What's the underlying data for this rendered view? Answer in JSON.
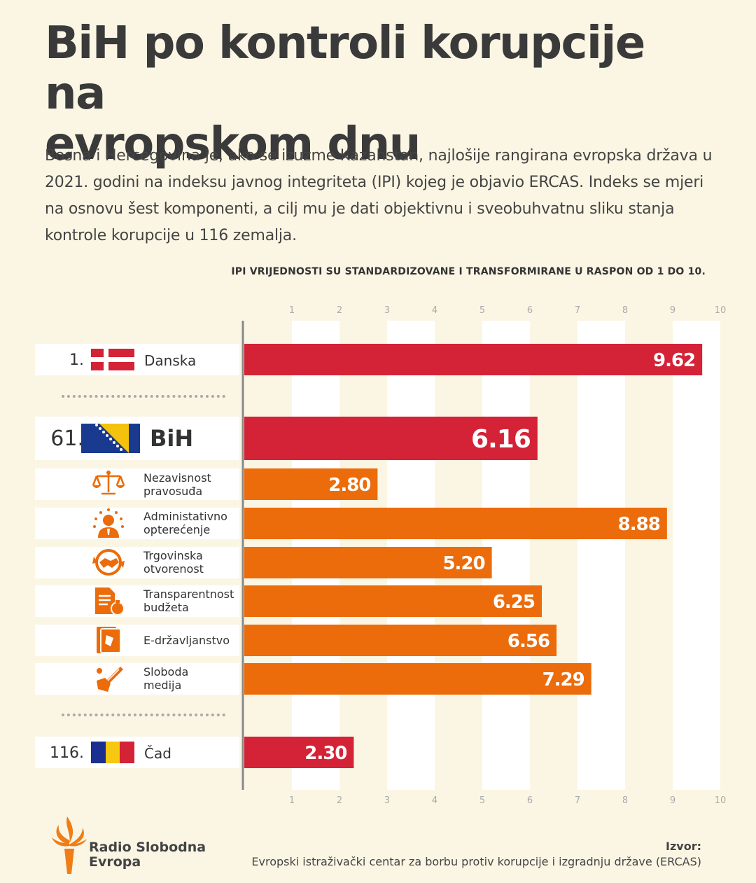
{
  "title_line1": "BiH po kontroli korupcije na",
  "title_line2": "evropskom dnu",
  "intro": "Bosna i Hercegovina je, ako se izuzme Kazahstan, najlošije rangirana evropska država u 2021. godini na indeksu javnog integriteta (IPI) kojeg je objavio ERCAS. Indeks se mjeri na osnovu šest komponenti, a cilj mu je dati objektivnu i sveobuhvatnu sliku stanja kontrole korupcije u 116 zemalja.",
  "note": "IPI VRIJEDNOSTI SU STANDARDIZOVANE I TRANSFORMIRANE U RASPON OD 1 DO 10.",
  "colors": {
    "country_bar": "#d42236",
    "component_bar": "#ec6b0a",
    "background": "#fbf6e4",
    "band": "#ffffff",
    "axis": "#888888"
  },
  "chart_data": {
    "type": "bar",
    "orientation": "horizontal",
    "xlim": [
      0,
      10
    ],
    "ticks": [
      "1",
      "2",
      "3",
      "4",
      "5",
      "6",
      "7",
      "8",
      "9",
      "10"
    ],
    "grid": true,
    "countries": [
      {
        "rank": "1.",
        "name": "Danska",
        "value": 9.62,
        "label": "9.62",
        "flag": "denmark-flag"
      },
      {
        "rank": "61.",
        "name": "BiH",
        "value": 6.16,
        "label": "6.16",
        "flag": "bosnia-flag"
      },
      {
        "rank": "116.",
        "name": "Čad",
        "value": 2.3,
        "label": "2.30",
        "flag": "chad-flag"
      }
    ],
    "components": [
      {
        "line1": "Nezavisnost",
        "line2": "pravosuđa",
        "value": 2.8,
        "label": "2.80",
        "icon": "scales-icon"
      },
      {
        "line1": "Administativno",
        "line2": "opterećenje",
        "value": 8.88,
        "label": "8.88",
        "icon": "bureaucrat-icon"
      },
      {
        "line1": "Trgovinska",
        "line2": "otvorenost",
        "value": 5.2,
        "label": "5.20",
        "icon": "handshake-icon"
      },
      {
        "line1": "Transparentnost",
        "line2": "budžeta",
        "value": 6.25,
        "label": "6.25",
        "icon": "budget-document-icon"
      },
      {
        "line1": "E-državljanstvo",
        "line2": "",
        "value": 6.56,
        "label": "6.56",
        "icon": "e-citizenship-icon"
      },
      {
        "line1": "Sloboda",
        "line2": "medija",
        "value": 7.29,
        "label": "7.29",
        "icon": "pen-freedom-icon"
      }
    ]
  },
  "footer": {
    "logo_line1": "Radio Slobodna",
    "logo_line2": "Evropa",
    "source_label": "Izvor:",
    "source_text": "Evropski istraživački centar za borbu protiv korupcije i izgradnju države (ERCAS)"
  }
}
